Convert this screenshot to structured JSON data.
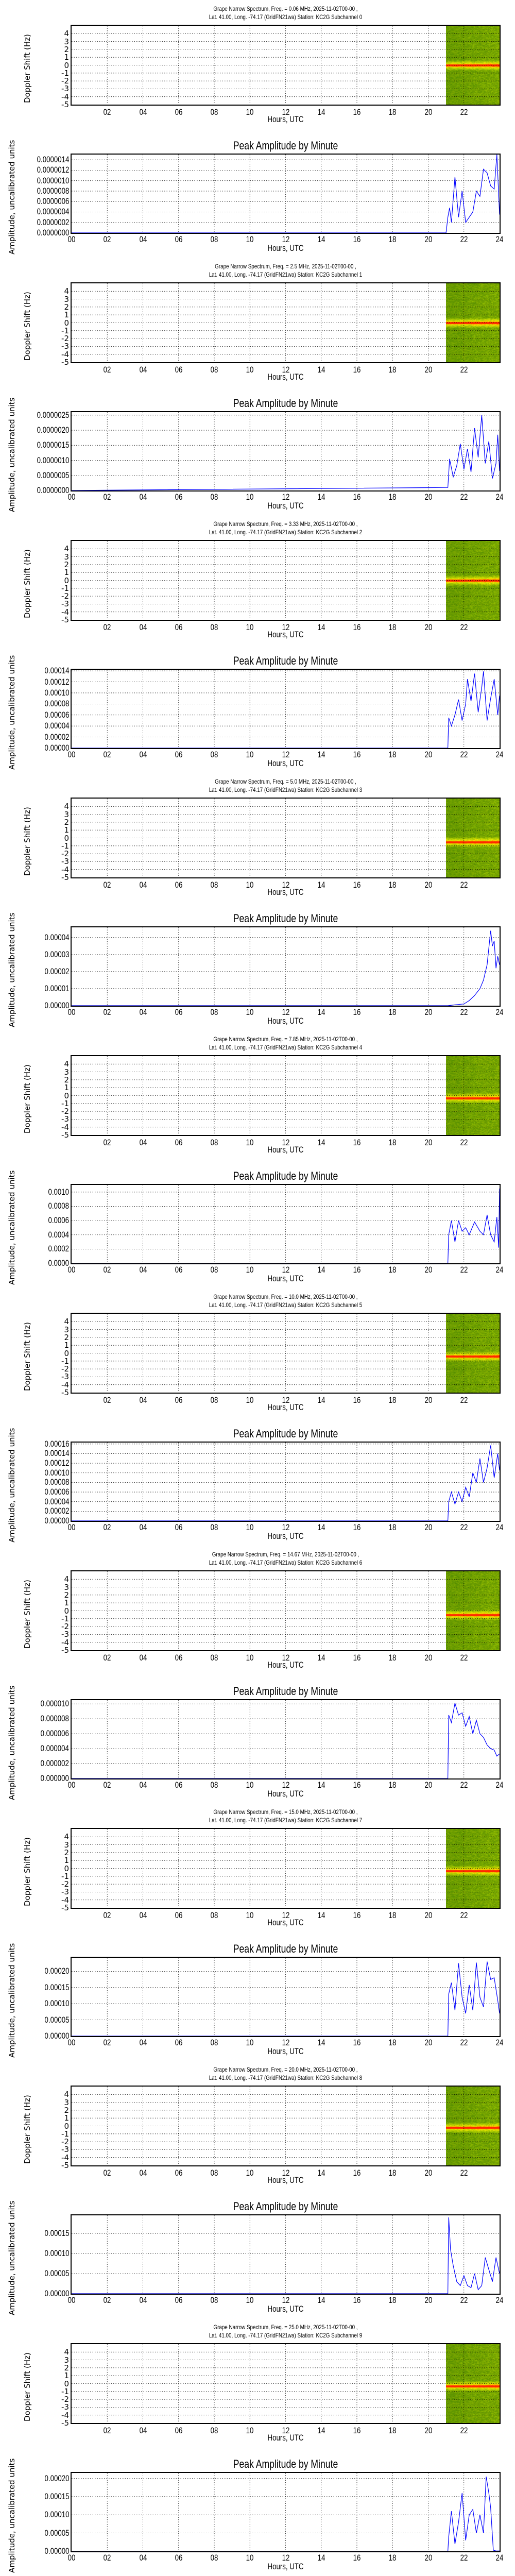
{
  "page": {
    "common": {
      "date": "2025-11-02T00-00",
      "location_line": "Lat.  41.00, Long. -74.17 (GridFN21wa) Station: KC2G",
      "spectrum_ylabel": "Doppler Shift (Hz)",
      "amplitude_ylabel": "Amplitude, uncalibrated units",
      "xlabel": "Hours, UTC",
      "amplitude_title": "Peak Amplitude by Minute",
      "spectrum_yticks": [
        "4",
        "3",
        "2",
        "1",
        "0",
        "-1",
        "-2",
        "-3",
        "-4",
        "-5"
      ],
      "spectrum_xticks": [
        "02",
        "04",
        "06",
        "08",
        "10",
        "12",
        "14",
        "16",
        "18",
        "20",
        "22"
      ],
      "amplitude_xticks": [
        "00",
        "02",
        "04",
        "06",
        "08",
        "10",
        "12",
        "14",
        "16",
        "18",
        "20",
        "22",
        "24"
      ],
      "colors": {
        "line": "#0000ff",
        "spectrum_background": "#1f7f00",
        "spectrum_mid": "#7fbf00",
        "spectrum_high": "#f0e000",
        "spectrum_peak": "#ff3000",
        "grid": "#000000"
      }
    },
    "panels": [
      {
        "title_line1": "Grape Narrow Spectrum, Freq. = 0.06 MHz, 2025-11-02T00-00 ,",
        "title_line2": "Lat.  41.00, Long. -74.17 (GridFN21wa) Station: KC2G Subchannel 0",
        "amp_yticks": [
          "0.0000014",
          "0.0000012",
          "0.0000010",
          "0.0000008",
          "0.0000006",
          "0.0000004",
          "0.0000002",
          "0.0000000"
        ]
      },
      {
        "title_line1": "Grape Narrow Spectrum, Freq. = 2.5 MHz, 2025-11-02T00-00 ,",
        "title_line2": "Lat.  41.00, Long. -74.17 (GridFN21wa) Station: KC2G Subchannel 1",
        "amp_yticks": [
          "0.0000025",
          "0.0000020",
          "0.0000015",
          "0.0000010",
          "0.0000005",
          "0.0000000"
        ]
      },
      {
        "title_line1": "Grape Narrow Spectrum, Freq. = 3.33 MHz, 2025-11-02T00-00 ,",
        "title_line2": "Lat.  41.00, Long. -74.17 (GridFN21wa) Station: KC2G Subchannel 2",
        "amp_yticks": [
          "0.00014",
          "0.00012",
          "0.00010",
          "0.00008",
          "0.00006",
          "0.00004",
          "0.00002",
          "0.00000"
        ]
      },
      {
        "title_line1": "Grape Narrow Spectrum, Freq. = 5.0 MHz, 2025-11-02T00-00 ,",
        "title_line2": "Lat.  41.00, Long. -74.17 (GridFN21wa) Station: KC2G Subchannel 3",
        "amp_yticks": [
          "0.00004",
          "0.00003",
          "0.00002",
          "0.00001",
          "0.00000"
        ]
      },
      {
        "title_line1": "Grape Narrow Spectrum, Freq. = 7.85 MHz, 2025-11-02T00-00 ,",
        "title_line2": "Lat.  41.00, Long. -74.17 (GridFN21wa) Station: KC2G Subchannel 4",
        "amp_yticks": [
          "0.0010",
          "0.0008",
          "0.0006",
          "0.0004",
          "0.0002",
          "0.0000"
        ]
      },
      {
        "title_line1": "Grape Narrow Spectrum, Freq. = 10.0 MHz, 2025-11-02T00-00 ,",
        "title_line2": "Lat.  41.00, Long. -74.17 (GridFN21wa) Station: KC2G Subchannel 5",
        "amp_yticks": [
          "0.00016",
          "0.00014",
          "0.00012",
          "0.00010",
          "0.00008",
          "0.00006",
          "0.00004",
          "0.00002",
          "0.00000"
        ]
      },
      {
        "title_line1": "Grape Narrow Spectrum, Freq. = 14.67 MHz, 2025-11-02T00-00 ,",
        "title_line2": "Lat.  41.00, Long. -74.17 (GridFN21wa) Station: KC2G Subchannel 6",
        "amp_yticks": [
          "0.000010",
          "0.000008",
          "0.000006",
          "0.000004",
          "0.000002",
          "0.000000"
        ]
      },
      {
        "title_line1": "Grape Narrow Spectrum, Freq. = 15.0 MHz, 2025-11-02T00-00 ,",
        "title_line2": "Lat.  41.00, Long. -74.17 (GridFN21wa) Station: KC2G Subchannel 7",
        "amp_yticks": [
          "0.00020",
          "0.00015",
          "0.00010",
          "0.00005",
          "0.00000"
        ]
      },
      {
        "title_line1": "Grape Narrow Spectrum, Freq. = 20.0 MHz, 2025-11-02T00-00 ,",
        "title_line2": "Lat.  41.00, Long. -74.17 (GridFN21wa) Station: KC2G Subchannel 8",
        "amp_yticks": [
          "0.00015",
          "0.00010",
          "0.00005",
          "0.00000"
        ]
      },
      {
        "title_line1": "Grape Narrow Spectrum, Freq. = 25.0 MHz, 2025-11-02T00-00 ,",
        "title_line2": "Lat.  41.00, Long. -74.17 (GridFN21wa) Station: KC2G Subchannel 9",
        "amp_yticks": [
          "0.00020",
          "0.00015",
          "0.00010",
          "0.00005",
          "0.00000"
        ]
      }
    ]
  },
  "chart_data": [
    {
      "type": "heatmap",
      "title": "Grape Narrow Spectrum, Freq. = 0.06 MHz, 2025-11-02T00-00 , Lat. 41.00, Long. -74.17 (GridFN21wa) Station: KC2G Subchannel 0",
      "xlabel": "Hours, UTC",
      "ylabel": "Doppler Shift (Hz)",
      "xlim": [
        0,
        24
      ],
      "ylim": [
        -5,
        5
      ],
      "data_start_hour": 21.0,
      "peak_doppler_hz": 0.0,
      "grid": true
    },
    {
      "type": "line",
      "title": "Peak Amplitude by Minute",
      "subchannel": 0,
      "freq_mhz": 0.06,
      "xlabel": "Hours, UTC",
      "ylabel": "Amplitude, uncalibrated units",
      "xlim": [
        0,
        24
      ],
      "ylim": [
        0,
        1.5e-06
      ],
      "grid": true,
      "x": [
        0,
        21.0,
        21.1,
        21.2,
        21.3,
        21.5,
        21.7,
        21.9,
        22.1,
        22.3,
        22.5,
        22.7,
        22.9,
        23.1,
        23.3,
        23.5,
        23.7,
        23.85,
        24.0
      ],
      "values": [
        0,
        0,
        3e-07,
        4.8e-07,
        2e-07,
        1.07e-06,
        3e-07,
        8e-07,
        2e-07,
        3e-07,
        4e-07,
        8e-07,
        7e-07,
        1.22e-06,
        1.15e-06,
        9e-07,
        8.4e-07,
        1.5e-06,
        3.5e-07
      ]
    },
    {
      "type": "heatmap",
      "title": "Grape Narrow Spectrum, Freq. = 2.5 MHz, 2025-11-02T00-00 , Lat. 41.00, Long. -74.17 (GridFN21wa) Station: KC2G Subchannel 1",
      "xlabel": "Hours, UTC",
      "ylabel": "Doppler Shift (Hz)",
      "xlim": [
        0,
        24
      ],
      "ylim": [
        -5,
        5
      ],
      "data_start_hour": 21.0,
      "peak_doppler_hz": 0.0,
      "grid": true
    },
    {
      "type": "line",
      "title": "Peak Amplitude by Minute",
      "subchannel": 1,
      "freq_mhz": 2.5,
      "xlabel": "Hours, UTC",
      "ylabel": "Amplitude, uncalibrated units",
      "xlim": [
        0,
        24
      ],
      "ylim": [
        0,
        2.6e-06
      ],
      "grid": true,
      "x": [
        0,
        21.1,
        21.2,
        21.4,
        21.6,
        21.8,
        22.0,
        22.2,
        22.4,
        22.6,
        22.8,
        23.0,
        23.2,
        23.4,
        23.6,
        23.8,
        23.9,
        24.0
      ],
      "values": [
        0,
        1e-07,
        1.05e-06,
        4.5e-07,
        8.2e-07,
        1.55e-06,
        7e-07,
        1.38e-06,
        6.1e-07,
        2.07e-06,
        1.1e-06,
        2.5e-06,
        9e-07,
        1.63e-06,
        4e-07,
        9e-07,
        1.85e-06,
        6.5e-07
      ]
    },
    {
      "type": "heatmap",
      "title": "Grape Narrow Spectrum, Freq. = 3.33 MHz, 2025-11-02T00-00 , Lat. 41.00, Long. -74.17 (GridFN21wa) Station: KC2G Subchannel 2",
      "xlabel": "Hours, UTC",
      "ylabel": "Doppler Shift (Hz)",
      "xlim": [
        0,
        24
      ],
      "ylim": [
        -5,
        5
      ],
      "data_start_hour": 21.0,
      "peak_doppler_hz": 0.0,
      "grid": true
    },
    {
      "type": "line",
      "title": "Peak Amplitude by Minute",
      "subchannel": 2,
      "freq_mhz": 3.33,
      "xlabel": "Hours, UTC",
      "ylabel": "Amplitude, uncalibrated units",
      "xlim": [
        0,
        24
      ],
      "ylim": [
        0,
        0.000142
      ],
      "grid": true,
      "x": [
        0,
        21.1,
        21.15,
        21.3,
        21.5,
        21.7,
        21.9,
        22.1,
        22.2,
        22.4,
        22.6,
        22.8,
        23.0,
        23.1,
        23.3,
        23.5,
        23.7,
        23.9,
        24.0
      ],
      "values": [
        0,
        0,
        5.5e-05,
        4e-05,
        6e-05,
        8.8e-05,
        5e-05,
        8e-05,
        0.000125,
        8.5e-05,
        0.000135,
        6.5e-05,
        0.00011,
        0.000139,
        5e-05,
        9e-05,
        0.000125,
        6e-05,
        9.5e-05
      ]
    },
    {
      "type": "heatmap",
      "title": "Grape Narrow Spectrum, Freq. = 5.0 MHz, 2025-11-02T00-00 , Lat. 41.00, Long. -74.17 (GridFN21wa) Station: KC2G Subchannel 3",
      "xlabel": "Hours, UTC",
      "ylabel": "Doppler Shift (Hz)",
      "xlim": [
        0,
        24
      ],
      "ylim": [
        -5,
        5
      ],
      "data_start_hour": 21.0,
      "peak_doppler_hz": -0.5,
      "grid": true
    },
    {
      "type": "line",
      "title": "Peak Amplitude by Minute",
      "subchannel": 3,
      "freq_mhz": 5.0,
      "xlabel": "Hours, UTC",
      "ylabel": "Amplitude, uncalibrated units",
      "xlim": [
        0,
        24
      ],
      "ylim": [
        0,
        4.6e-05
      ],
      "grid": true,
      "x": [
        0,
        21.1,
        21.5,
        22.0,
        22.3,
        22.6,
        22.9,
        23.1,
        23.3,
        23.5,
        23.6,
        23.7,
        23.8,
        23.9,
        24.0
      ],
      "values": [
        0,
        0,
        5e-07,
        1e-06,
        3e-06,
        6e-06,
        1e-05,
        1.5e-05,
        2.4e-05,
        4.4e-05,
        3.5e-05,
        3.8e-05,
        2.2e-05,
        2.9e-05,
        2.4e-05
      ]
    },
    {
      "type": "heatmap",
      "title": "Grape Narrow Spectrum, Freq. = 7.85 MHz, 2025-11-02T00-00 , Lat. 41.00, Long. -74.17 (GridFN21wa) Station: KC2G Subchannel 4",
      "xlabel": "Hours, UTC",
      "ylabel": "Doppler Shift (Hz)",
      "xlim": [
        0,
        24
      ],
      "ylim": [
        -5,
        5
      ],
      "data_start_hour": 21.0,
      "peak_doppler_hz": -0.3,
      "grid": true
    },
    {
      "type": "line",
      "title": "Peak Amplitude by Minute",
      "subchannel": 4,
      "freq_mhz": 7.85,
      "xlabel": "Hours, UTC",
      "ylabel": "Amplitude, uncalibrated units",
      "xlim": [
        0,
        24
      ],
      "ylim": [
        0,
        0.0011
      ],
      "grid": true,
      "x": [
        0,
        21.1,
        21.15,
        21.3,
        21.5,
        21.7,
        21.9,
        22.1,
        22.3,
        22.6,
        22.9,
        23.1,
        23.3,
        23.5,
        23.7,
        23.85,
        23.95,
        24.0
      ],
      "values": [
        0,
        0,
        0.0004,
        0.0006,
        0.0003,
        0.0006,
        0.00045,
        0.0005,
        0.0004,
        0.00058,
        0.00045,
        0.0004,
        0.00068,
        0.0004,
        0.0003,
        0.00065,
        0.00022,
        0.00105
      ]
    },
    {
      "type": "heatmap",
      "title": "Grape Narrow Spectrum, Freq. = 10.0 MHz, 2025-11-02T00-00 , Lat. 41.00, Long. -74.17 (GridFN21wa) Station: KC2G Subchannel 5",
      "xlabel": "Hours, UTC",
      "ylabel": "Doppler Shift (Hz)",
      "xlim": [
        0,
        24
      ],
      "ylim": [
        -5,
        5
      ],
      "data_start_hour": 21.0,
      "peak_doppler_hz": -0.4,
      "grid": true
    },
    {
      "type": "line",
      "title": "Peak Amplitude by Minute",
      "subchannel": 5,
      "freq_mhz": 10.0,
      "xlabel": "Hours, UTC",
      "ylabel": "Amplitude, uncalibrated units",
      "xlim": [
        0,
        24
      ],
      "ylim": [
        0,
        0.000163
      ],
      "grid": true,
      "x": [
        0,
        21.1,
        21.15,
        21.3,
        21.5,
        21.7,
        21.9,
        22.1,
        22.3,
        22.5,
        22.7,
        22.9,
        23.1,
        23.3,
        23.5,
        23.7,
        23.9,
        24.0
      ],
      "values": [
        0,
        0,
        4e-05,
        6e-05,
        3.5e-05,
        6e-05,
        4e-05,
        7e-05,
        5e-05,
        0.0001,
        8e-05,
        0.00013,
        8e-05,
        0.00011,
        0.000157,
        9e-05,
        0.00014,
        0.000105
      ]
    },
    {
      "type": "heatmap",
      "title": "Grape Narrow Spectrum, Freq. = 14.67 MHz, 2025-11-02T00-00 , Lat. 41.00, Long. -74.17 (GridFN21wa) Station: KC2G Subchannel 6",
      "xlabel": "Hours, UTC",
      "ylabel": "Doppler Shift (Hz)",
      "xlim": [
        0,
        24
      ],
      "ylim": [
        -5,
        5
      ],
      "data_start_hour": 21.0,
      "peak_doppler_hz": -0.5,
      "grid": true
    },
    {
      "type": "line",
      "title": "Peak Amplitude by Minute",
      "subchannel": 6,
      "freq_mhz": 14.67,
      "xlabel": "Hours, UTC",
      "ylabel": "Amplitude, uncalibrated units",
      "xlim": [
        0,
        24
      ],
      "ylim": [
        0,
        1.05e-05
      ],
      "grid": true,
      "x": [
        0,
        21.1,
        21.15,
        21.3,
        21.5,
        21.7,
        21.9,
        22.1,
        22.3,
        22.5,
        22.7,
        22.9,
        23.1,
        23.3,
        23.5,
        23.7,
        23.85,
        24.0
      ],
      "values": [
        0,
        0,
        8.5e-06,
        7.5e-06,
        1.01e-05,
        8.5e-06,
        8.8e-06,
        7e-06,
        8.3e-06,
        6e-06,
        7.8e-06,
        6e-06,
        5.5e-06,
        4.5e-06,
        4e-06,
        3.8e-06,
        3e-06,
        3.3e-06
      ]
    },
    {
      "type": "heatmap",
      "title": "Grape Narrow Spectrum, Freq. = 15.0 MHz, 2025-11-02T00-00 , Lat. 41.00, Long. -74.17 (GridFN21wa) Station: KC2G Subchannel 7",
      "xlabel": "Hours, UTC",
      "ylabel": "Doppler Shift (Hz)",
      "xlim": [
        0,
        24
      ],
      "ylim": [
        -5,
        5
      ],
      "data_start_hour": 21.0,
      "peak_doppler_hz": -0.3,
      "grid": true
    },
    {
      "type": "line",
      "title": "Peak Amplitude by Minute",
      "subchannel": 7,
      "freq_mhz": 15.0,
      "xlabel": "Hours, UTC",
      "ylabel": "Amplitude, uncalibrated units",
      "xlim": [
        0,
        24
      ],
      "ylim": [
        0,
        0.000242
      ],
      "grid": true,
      "x": [
        0,
        21.1,
        21.15,
        21.3,
        21.5,
        21.7,
        21.9,
        22.1,
        22.3,
        22.5,
        22.7,
        22.9,
        23.1,
        23.3,
        23.5,
        23.7,
        23.9,
        24.0
      ],
      "values": [
        0,
        0,
        0.00013,
        0.000165,
        8e-05,
        0.000225,
        0.00012,
        7e-05,
        0.000158,
        8e-05,
        0.000227,
        0.00012,
        9e-05,
        0.00023,
        0.000175,
        0.00018,
        0.00011,
        7e-05
      ]
    },
    {
      "type": "heatmap",
      "title": "Grape Narrow Spectrum, Freq. = 20.0 MHz, 2025-11-02T00-00 , Lat. 41.00, Long. -74.17 (GridFN21wa) Station: KC2G Subchannel 8",
      "xlabel": "Hours, UTC",
      "ylabel": "Doppler Shift (Hz)",
      "xlim": [
        0,
        24
      ],
      "ylim": [
        -5,
        5
      ],
      "data_start_hour": 21.0,
      "peak_doppler_hz": -0.2,
      "grid": true
    },
    {
      "type": "line",
      "title": "Peak Amplitude by Minute",
      "subchannel": 8,
      "freq_mhz": 20.0,
      "xlabel": "Hours, UTC",
      "ylabel": "Amplitude, uncalibrated units",
      "xlim": [
        0,
        24
      ],
      "ylim": [
        0,
        0.000195
      ],
      "grid": true,
      "x": [
        0,
        21.1,
        21.15,
        21.25,
        21.4,
        21.6,
        21.8,
        22.0,
        22.2,
        22.4,
        22.6,
        22.8,
        23.0,
        23.2,
        23.4,
        23.6,
        23.8,
        23.9,
        24.0
      ],
      "values": [
        0,
        0,
        0.00019,
        0.00011,
        7e-05,
        3e-05,
        2e-05,
        4.5e-05,
        2e-05,
        1.5e-05,
        5e-05,
        1e-05,
        2e-05,
        9e-05,
        6e-05,
        3e-05,
        9e-05,
        7e-05,
        5e-05
      ]
    },
    {
      "type": "heatmap",
      "title": "Grape Narrow Spectrum, Freq. = 25.0 MHz, 2025-11-02T00-00 , Lat. 41.00, Long. -74.17 (GridFN21wa) Station: KC2G Subchannel 9",
      "xlabel": "Hours, UTC",
      "ylabel": "Doppler Shift (Hz)",
      "xlim": [
        0,
        24
      ],
      "ylim": [
        -5,
        5
      ],
      "data_start_hour": 21.0,
      "peak_doppler_hz": -0.3,
      "grid": true
    },
    {
      "type": "line",
      "title": "Peak Amplitude by Minute",
      "subchannel": 9,
      "freq_mhz": 25.0,
      "xlabel": "Hours, UTC",
      "ylabel": "Amplitude, uncalibrated units",
      "xlim": [
        0,
        24
      ],
      "ylim": [
        0,
        0.000215
      ],
      "grid": true,
      "x": [
        0,
        21.1,
        21.15,
        21.3,
        21.5,
        21.7,
        21.9,
        22.1,
        22.3,
        22.5,
        22.7,
        22.9,
        23.1,
        23.25,
        23.4,
        23.5,
        23.65,
        23.8,
        24.0
      ],
      "values": [
        0,
        0,
        4e-05,
        0.00011,
        2e-05,
        8e-05,
        0.00016,
        3e-05,
        0.0001,
        0.000115,
        5e-05,
        0.0001,
        5e-05,
        0.000205,
        0.00016,
        0.00012,
        3e-06,
        1e-06,
        1e-06
      ]
    }
  ]
}
